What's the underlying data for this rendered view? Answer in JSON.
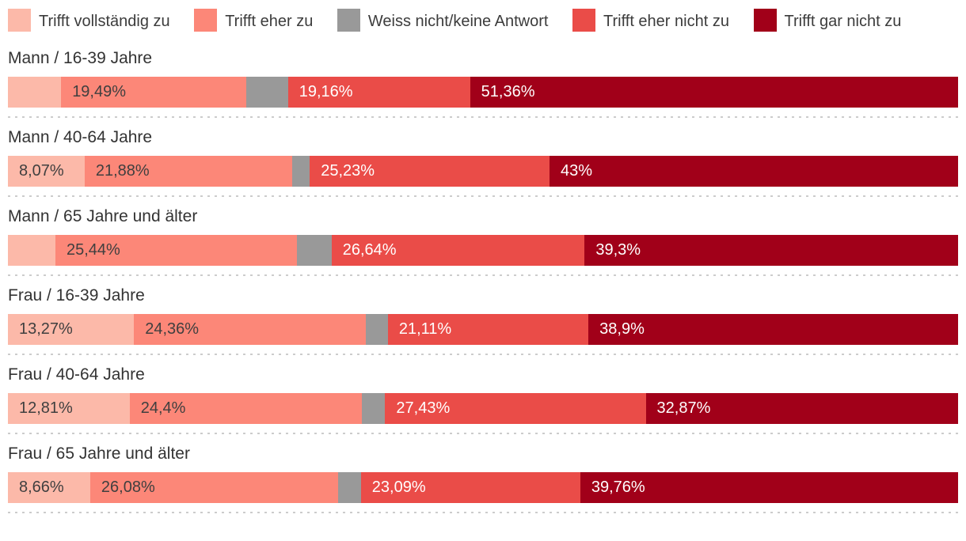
{
  "legend": {
    "items": [
      {
        "label": "Trifft vollständig zu",
        "color": "#fcb9a9"
      },
      {
        "label": "Trifft eher zu",
        "color": "#fc8778"
      },
      {
        "label": "Weiss nicht/keine Antwort",
        "color": "#999999"
      },
      {
        "label": "Trifft eher nicht zu",
        "color": "#ea4c48"
      },
      {
        "label": "Trifft gar nicht zu",
        "color": "#a10019"
      }
    ]
  },
  "chart_data": {
    "type": "bar",
    "stacked": true,
    "orientation": "horizontal",
    "unit": "%",
    "xlim": [
      0,
      100
    ],
    "grid": false,
    "legend_position": "top",
    "series": [
      "Trifft vollständig zu",
      "Trifft eher zu",
      "Weiss nicht/keine Antwort",
      "Trifft eher nicht zu",
      "Trifft gar nicht zu"
    ],
    "colors": [
      "#fcb9a9",
      "#fc8778",
      "#999999",
      "#ea4c48",
      "#a10019"
    ],
    "label_text_colors": [
      "#3f3f3f",
      "#3f3f3f",
      "#3f3f3f",
      "#ffffff",
      "#ffffff"
    ],
    "rows": [
      {
        "category": "Mann / 16-39 Jahre",
        "values": [
          5.6,
          19.49,
          4.39,
          19.16,
          51.36
        ],
        "labels": [
          "",
          "19,49%",
          "",
          "19,16%",
          "51,36%"
        ]
      },
      {
        "category": "Mann / 40-64 Jahre",
        "values": [
          8.07,
          21.88,
          1.82,
          25.23,
          43.0
        ],
        "labels": [
          "8,07%",
          "21,88%",
          "",
          "25,23%",
          "43%"
        ]
      },
      {
        "category": "Mann / 65 Jahre und älter",
        "values": [
          5.0,
          25.44,
          3.62,
          26.64,
          39.3
        ],
        "labels": [
          "",
          "25,44%",
          "",
          "26,64%",
          "39,3%"
        ]
      },
      {
        "category": "Frau / 16-39 Jahre",
        "values": [
          13.27,
          24.36,
          2.36,
          21.11,
          38.9
        ],
        "labels": [
          "13,27%",
          "24,36%",
          "",
          "21,11%",
          "38,9%"
        ]
      },
      {
        "category": "Frau / 40-64 Jahre",
        "values": [
          12.81,
          24.4,
          2.49,
          27.43,
          32.87
        ],
        "labels": [
          "12,81%",
          "24,4%",
          "",
          "27,43%",
          "32,87%"
        ]
      },
      {
        "category": "Frau / 65 Jahre und älter",
        "values": [
          8.66,
          26.08,
          2.41,
          23.09,
          39.76
        ],
        "labels": [
          "8,66%",
          "26,08%",
          "",
          "23,09%",
          "39,76%"
        ]
      }
    ]
  }
}
